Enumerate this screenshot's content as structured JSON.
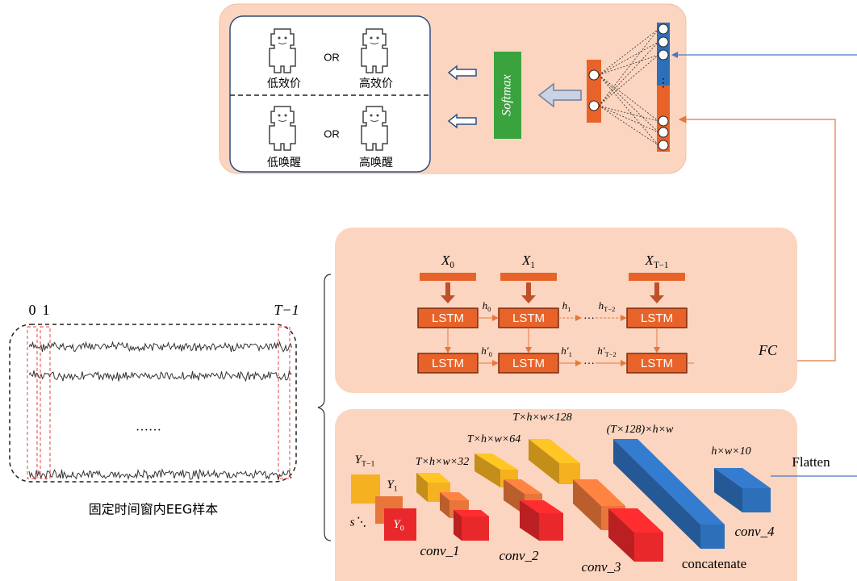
{
  "affect_output": {
    "valence_low": "低效价",
    "valence_high": "高效价",
    "arousal_low": "低唤醒",
    "arousal_high": "高唤醒",
    "or": [
      "OR",
      "OR"
    ],
    "classifier": "Softmax"
  },
  "lstm": {
    "inputs": [
      {
        "symbol": "X",
        "sub": "0"
      },
      {
        "symbol": "X",
        "sub": "1"
      },
      {
        "symbol": "X",
        "sub": "T−1"
      }
    ],
    "cells": [
      [
        "LSTM",
        "LSTM",
        "LSTM"
      ],
      [
        "LSTM",
        "LSTM",
        "LSTM"
      ]
    ],
    "hidden": [
      [
        {
          "symbol": "h",
          "sub": "0"
        },
        {
          "symbol": "h",
          "sub": "1"
        },
        {
          "symbol": "h",
          "sub": "T−2"
        }
      ],
      [
        {
          "symbol": "h′",
          "sub": "0"
        },
        {
          "symbol": "h′",
          "sub": "1"
        },
        {
          "symbol": "h′",
          "sub": "T−2"
        }
      ]
    ],
    "ellipsis": [
      "···",
      "···"
    ],
    "fc": "FC"
  },
  "eeg": {
    "channel_ticks": [
      "0",
      "1",
      "T−1"
    ],
    "ellipsis": "……",
    "caption": "固定时间窗内EEG样本"
  },
  "cnn": {
    "inputs": [
      {
        "symbol": "Y",
        "sub": "T−1"
      },
      {
        "symbol": "Y",
        "sub": "1"
      },
      {
        "symbol": "Y",
        "sub": "0"
      }
    ],
    "stack_symbol": "s⋱",
    "shapes": [
      "T×h×w×32",
      "T×h×w×64",
      "T×h×w×128",
      "(T×128)×h×w",
      "h×w×10"
    ],
    "layers": [
      "conv_1",
      "conv_2",
      "conv_3",
      "concatenate",
      "conv_4"
    ],
    "flatten": "Flatten"
  }
}
